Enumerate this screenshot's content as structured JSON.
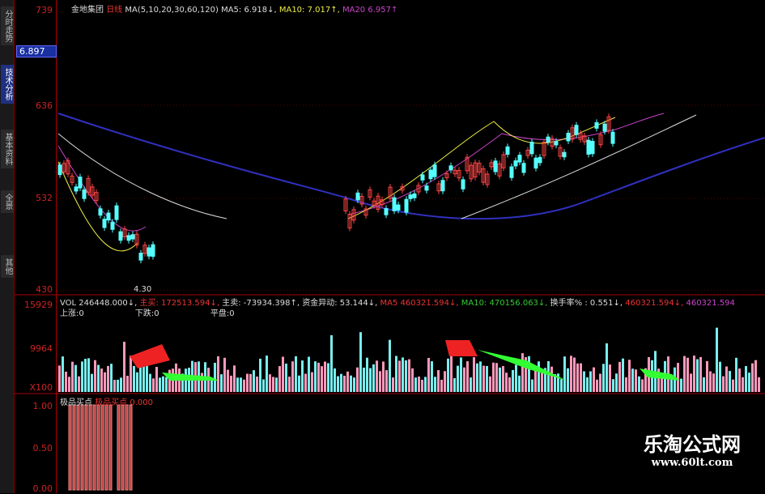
{
  "side_tabs": [
    "分时走势",
    "技术分析",
    "基本资料",
    "全景",
    "其他"
  ],
  "axis": {
    "top": "739",
    "price_box": "6.897",
    "p1": "636",
    "p2": "532",
    "p3": "430",
    "v1": "15929",
    "v2": "9964",
    "v3": "X100",
    "i1": "1.00",
    "i2": "0.50",
    "i3": "0.00"
  },
  "header": {
    "stock": "金地集团",
    "period": "日线",
    "ma": "MA(5,10,20,30,60,120)",
    "ma5": "MA5: 6.918↓,",
    "ma10": "MA10: 7.017↑,",
    "ma20": "MA20  6.957↑"
  },
  "low_label": "4.30",
  "vol": {
    "vol": "VOL 246448.000↓,",
    "buy_l": "主买:",
    "buy": "172513.594↓,",
    "sell": "主卖: -73934.398↑,",
    "fund": "资金异动: 53.144↓,",
    "ma5_l": "MA5",
    "ma5": "460321.594↓,",
    "ma10": "MA10: 470156.063↓,",
    "turn": "换手率% : 0.551↓,",
    "x1": "460321.594↓,",
    "x2": "460321.594",
    "up": "上涨:0",
    "down": "下跌:0",
    "flat": "平盘:0"
  },
  "ind": {
    "name": "极品买点",
    "name2": "极品买点",
    "val": "0.000"
  },
  "watermark": {
    "cn": "乐淘公式网",
    "url": "www.60lt.com"
  },
  "colors": {
    "up": "#ff4444",
    "down": "#55ffff",
    "ma60": "#3030c0"
  }
}
